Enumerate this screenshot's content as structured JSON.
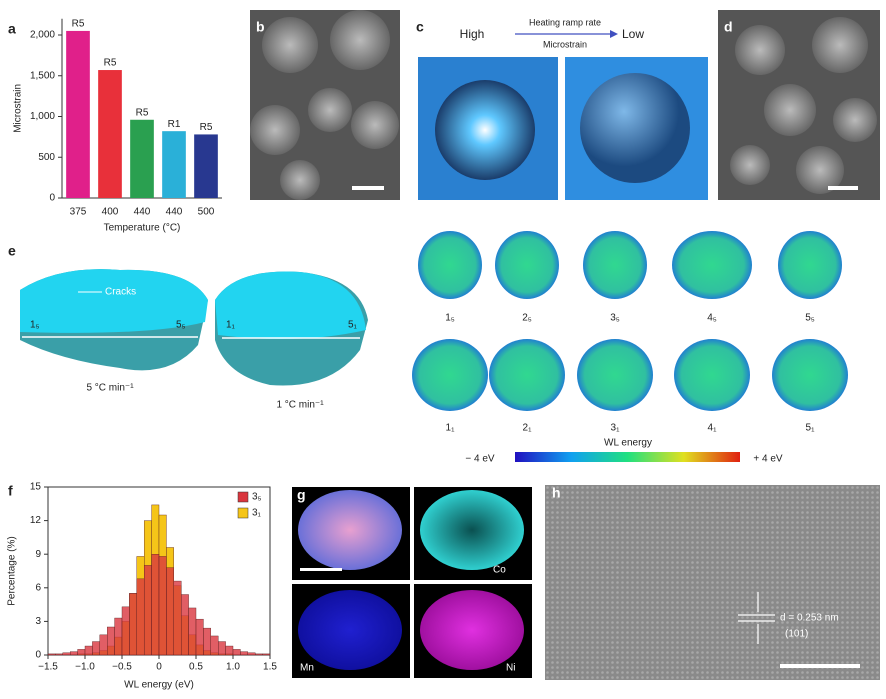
{
  "chart_data": [
    {
      "type": "bar",
      "panel": "a",
      "ylabel": "Microstrain",
      "xlabel": "Temperature (°C)",
      "categories": [
        "375",
        "400",
        "440",
        "440",
        "500"
      ],
      "values": [
        2050,
        1570,
        960,
        820,
        780
      ],
      "bar_labels": [
        "R5",
        "R5",
        "R5",
        "R1",
        "R5"
      ],
      "colors": [
        "#e0208a",
        "#e8303a",
        "#2aa050",
        "#2ab0d8",
        "#283890"
      ],
      "ylim": [
        0,
        2200
      ],
      "yticks": [
        0,
        500,
        {
          "value": 1000,
          "label": "1,000"
        },
        {
          "value": 1500,
          "label": "1,500"
        },
        {
          "value": 2000,
          "label": "2,000"
        }
      ]
    },
    {
      "type": "histogram",
      "panel": "f",
      "xlabel": "WL energy (eV)",
      "ylabel": "Percentage (%)",
      "bins": [
        -1.5,
        -1.4,
        -1.3,
        -1.2,
        -1.1,
        -1.0,
        -0.9,
        -0.8,
        -0.7,
        -0.6,
        -0.5,
        -0.4,
        -0.3,
        -0.2,
        -0.1,
        0,
        0.1,
        0.2,
        0.3,
        0.4,
        0.5,
        0.6,
        0.7,
        0.8,
        0.9,
        1.0,
        1.1,
        1.2,
        1.3,
        1.4,
        1.5
      ],
      "series": [
        {
          "name": "3₁",
          "color": "#f5c518",
          "values": [
            0,
            0,
            0,
            0,
            0.1,
            0.1,
            0.2,
            0.4,
            0.8,
            1.6,
            3.0,
            5.5,
            8.8,
            12.0,
            13.4,
            12.5,
            9.6,
            6.2,
            3.5,
            1.8,
            0.9,
            0.4,
            0.2,
            0.1,
            0.1,
            0,
            0,
            0,
            0,
            0
          ]
        },
        {
          "name": "3₅",
          "color": "#d9363e",
          "values": [
            0.1,
            0.1,
            0.2,
            0.3,
            0.5,
            0.8,
            1.2,
            1.8,
            2.5,
            3.3,
            4.3,
            5.5,
            6.8,
            8.0,
            9.0,
            8.8,
            7.8,
            6.6,
            5.4,
            4.2,
            3.2,
            2.4,
            1.7,
            1.2,
            0.8,
            0.5,
            0.3,
            0.2,
            0.1,
            0.1
          ]
        }
      ],
      "xlim": [
        -1.5,
        1.5
      ],
      "xticks": [
        {
          "value": -1.5,
          "label": "−1.5"
        },
        {
          "value": -1.0,
          "label": "−1.0"
        },
        {
          "value": -0.5,
          "label": "−0.5"
        },
        0,
        0.5,
        {
          "value": 1.0,
          "label": "1.0"
        },
        1.5
      ],
      "ylim": [
        0,
        15
      ],
      "yticks": [
        0,
        3,
        6,
        9,
        12,
        15
      ]
    }
  ],
  "figure": {
    "panel_letters": [
      "a",
      "b",
      "c",
      "d",
      "e",
      "f",
      "g",
      "h"
    ],
    "c": {
      "high": "High",
      "arrow_top": "Heating ramp rate",
      "arrow_bottom": "Microstrain",
      "low": "Low"
    },
    "e": {
      "cracks": "Cracks",
      "left_start": "1₅",
      "left_end": "5₅",
      "right_start": "1₁",
      "right_end": "5₁",
      "left_rate": "5 °C min⁻¹",
      "right_rate": "1 °C min⁻¹",
      "row1": [
        "1₅",
        "2₅",
        "3₅",
        "4₅",
        "5₅"
      ],
      "row2": [
        "1₁",
        "2₁",
        "3₁",
        "4₁",
        "5₁"
      ],
      "colorbar_title": "WL energy",
      "colorbar_min": "− 4 eV",
      "colorbar_max": "+ 4 eV"
    },
    "g": {
      "co": "Co",
      "mn": "Mn",
      "ni": "Ni"
    },
    "h": {
      "spacing": "d = 0.253 nm",
      "plane": "(101)"
    }
  }
}
